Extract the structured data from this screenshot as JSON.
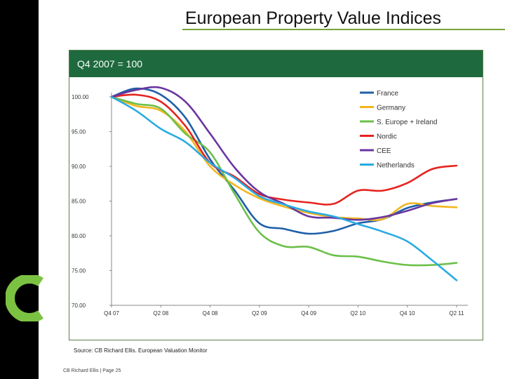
{
  "page": {
    "title": "European Property Value Indices",
    "footer": "CB Richard Ellis | Page 25"
  },
  "panel": {
    "header": "Q4 2007 = 100",
    "source": "Source: CB Richard Ellis. European Valuation Monitor"
  },
  "colors": {
    "brand_green": "#1e6a3e",
    "accent_green": "#7aa33a"
  },
  "chart_data": {
    "type": "line",
    "title": "",
    "xlabel": "",
    "ylabel": "",
    "x": [
      "Q4 07",
      "Q1 08",
      "Q2 08",
      "Q3 08",
      "Q4 08",
      "Q1 09",
      "Q2 09",
      "Q3 09",
      "Q4 09",
      "Q1 10",
      "Q2 10",
      "Q3 10",
      "Q4 10",
      "Q1 11",
      "Q2 11"
    ],
    "tick_labels": [
      "Q4 07",
      "Q2 08",
      "Q4 08",
      "Q2 09",
      "Q4 09",
      "Q2 10",
      "Q4 10",
      "Q2 11"
    ],
    "y_ticks": [
      "100.00",
      "95.00",
      "90.00",
      "85.00",
      "80.00",
      "75.00",
      "70.00"
    ],
    "ylim": [
      70,
      100
    ],
    "legend_position": "top-right",
    "series": [
      {
        "name": "France",
        "color": "#1f5fa8",
        "values": [
          100,
          101.2,
          100.3,
          97.0,
          91.0,
          86.5,
          81.8,
          81.0,
          80.3,
          80.7,
          81.8,
          82.4,
          84.0,
          84.8,
          85.3
        ]
      },
      {
        "name": "Germany",
        "color": "#f2b51d",
        "values": [
          100,
          98.7,
          98.0,
          95.0,
          90.0,
          87.3,
          85.4,
          84.2,
          83.3,
          82.7,
          82.5,
          82.4,
          84.6,
          84.3,
          84.1
        ]
      },
      {
        "name": "S. Europe + Ireland",
        "color": "#6cc04a",
        "values": [
          100,
          99.0,
          98.3,
          94.7,
          92.0,
          86.0,
          80.5,
          78.5,
          78.4,
          77.2,
          77.0,
          76.3,
          75.8,
          75.8,
          76.1
        ]
      },
      {
        "name": "Nordic",
        "color": "#e5231f",
        "values": [
          100,
          100.3,
          99.3,
          95.8,
          90.5,
          88.5,
          86.0,
          85.2,
          84.8,
          84.6,
          86.5,
          86.5,
          87.6,
          89.6,
          90.1
        ]
      },
      {
        "name": "CEE",
        "color": "#6a35a0",
        "values": [
          100,
          101.0,
          101.3,
          99.3,
          94.7,
          89.8,
          86.3,
          84.6,
          82.8,
          82.6,
          82.3,
          82.7,
          83.6,
          84.7,
          85.3
        ]
      },
      {
        "name": "Netherlands",
        "color": "#29abe2",
        "values": [
          100,
          98.0,
          95.4,
          93.5,
          90.5,
          88.3,
          85.7,
          84.5,
          83.5,
          82.8,
          81.7,
          80.6,
          79.2,
          76.5,
          73.6
        ]
      }
    ]
  }
}
